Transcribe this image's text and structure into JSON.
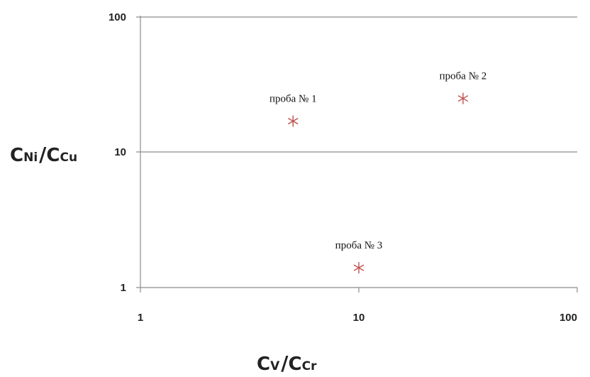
{
  "chart_data": {
    "type": "scatter",
    "x_scale": "log",
    "y_scale": "log",
    "xlim": [
      1,
      100
    ],
    "ylim": [
      1,
      100
    ],
    "x_ticks": [
      "1",
      "10",
      "100"
    ],
    "y_ticks": [
      "1",
      "10",
      "100"
    ],
    "grid": "horizontal",
    "legend": "none",
    "marker": "asterisk",
    "marker_color": "#c0504d",
    "xlabel": {
      "main1": "C",
      "sub1": "V",
      "slash": "/",
      "main2": "C",
      "sub2": "Cr"
    },
    "ylabel": {
      "main1": "C",
      "sub1": "Ni",
      "slash": "/",
      "main2": "C",
      "sub2": "Cu"
    },
    "points": [
      {
        "label": "проба № 1",
        "x": 5,
        "y": 17
      },
      {
        "label": "проба № 2",
        "x": 30,
        "y": 25
      },
      {
        "label": "проба № 3",
        "x": 10,
        "y": 1.4
      }
    ]
  }
}
